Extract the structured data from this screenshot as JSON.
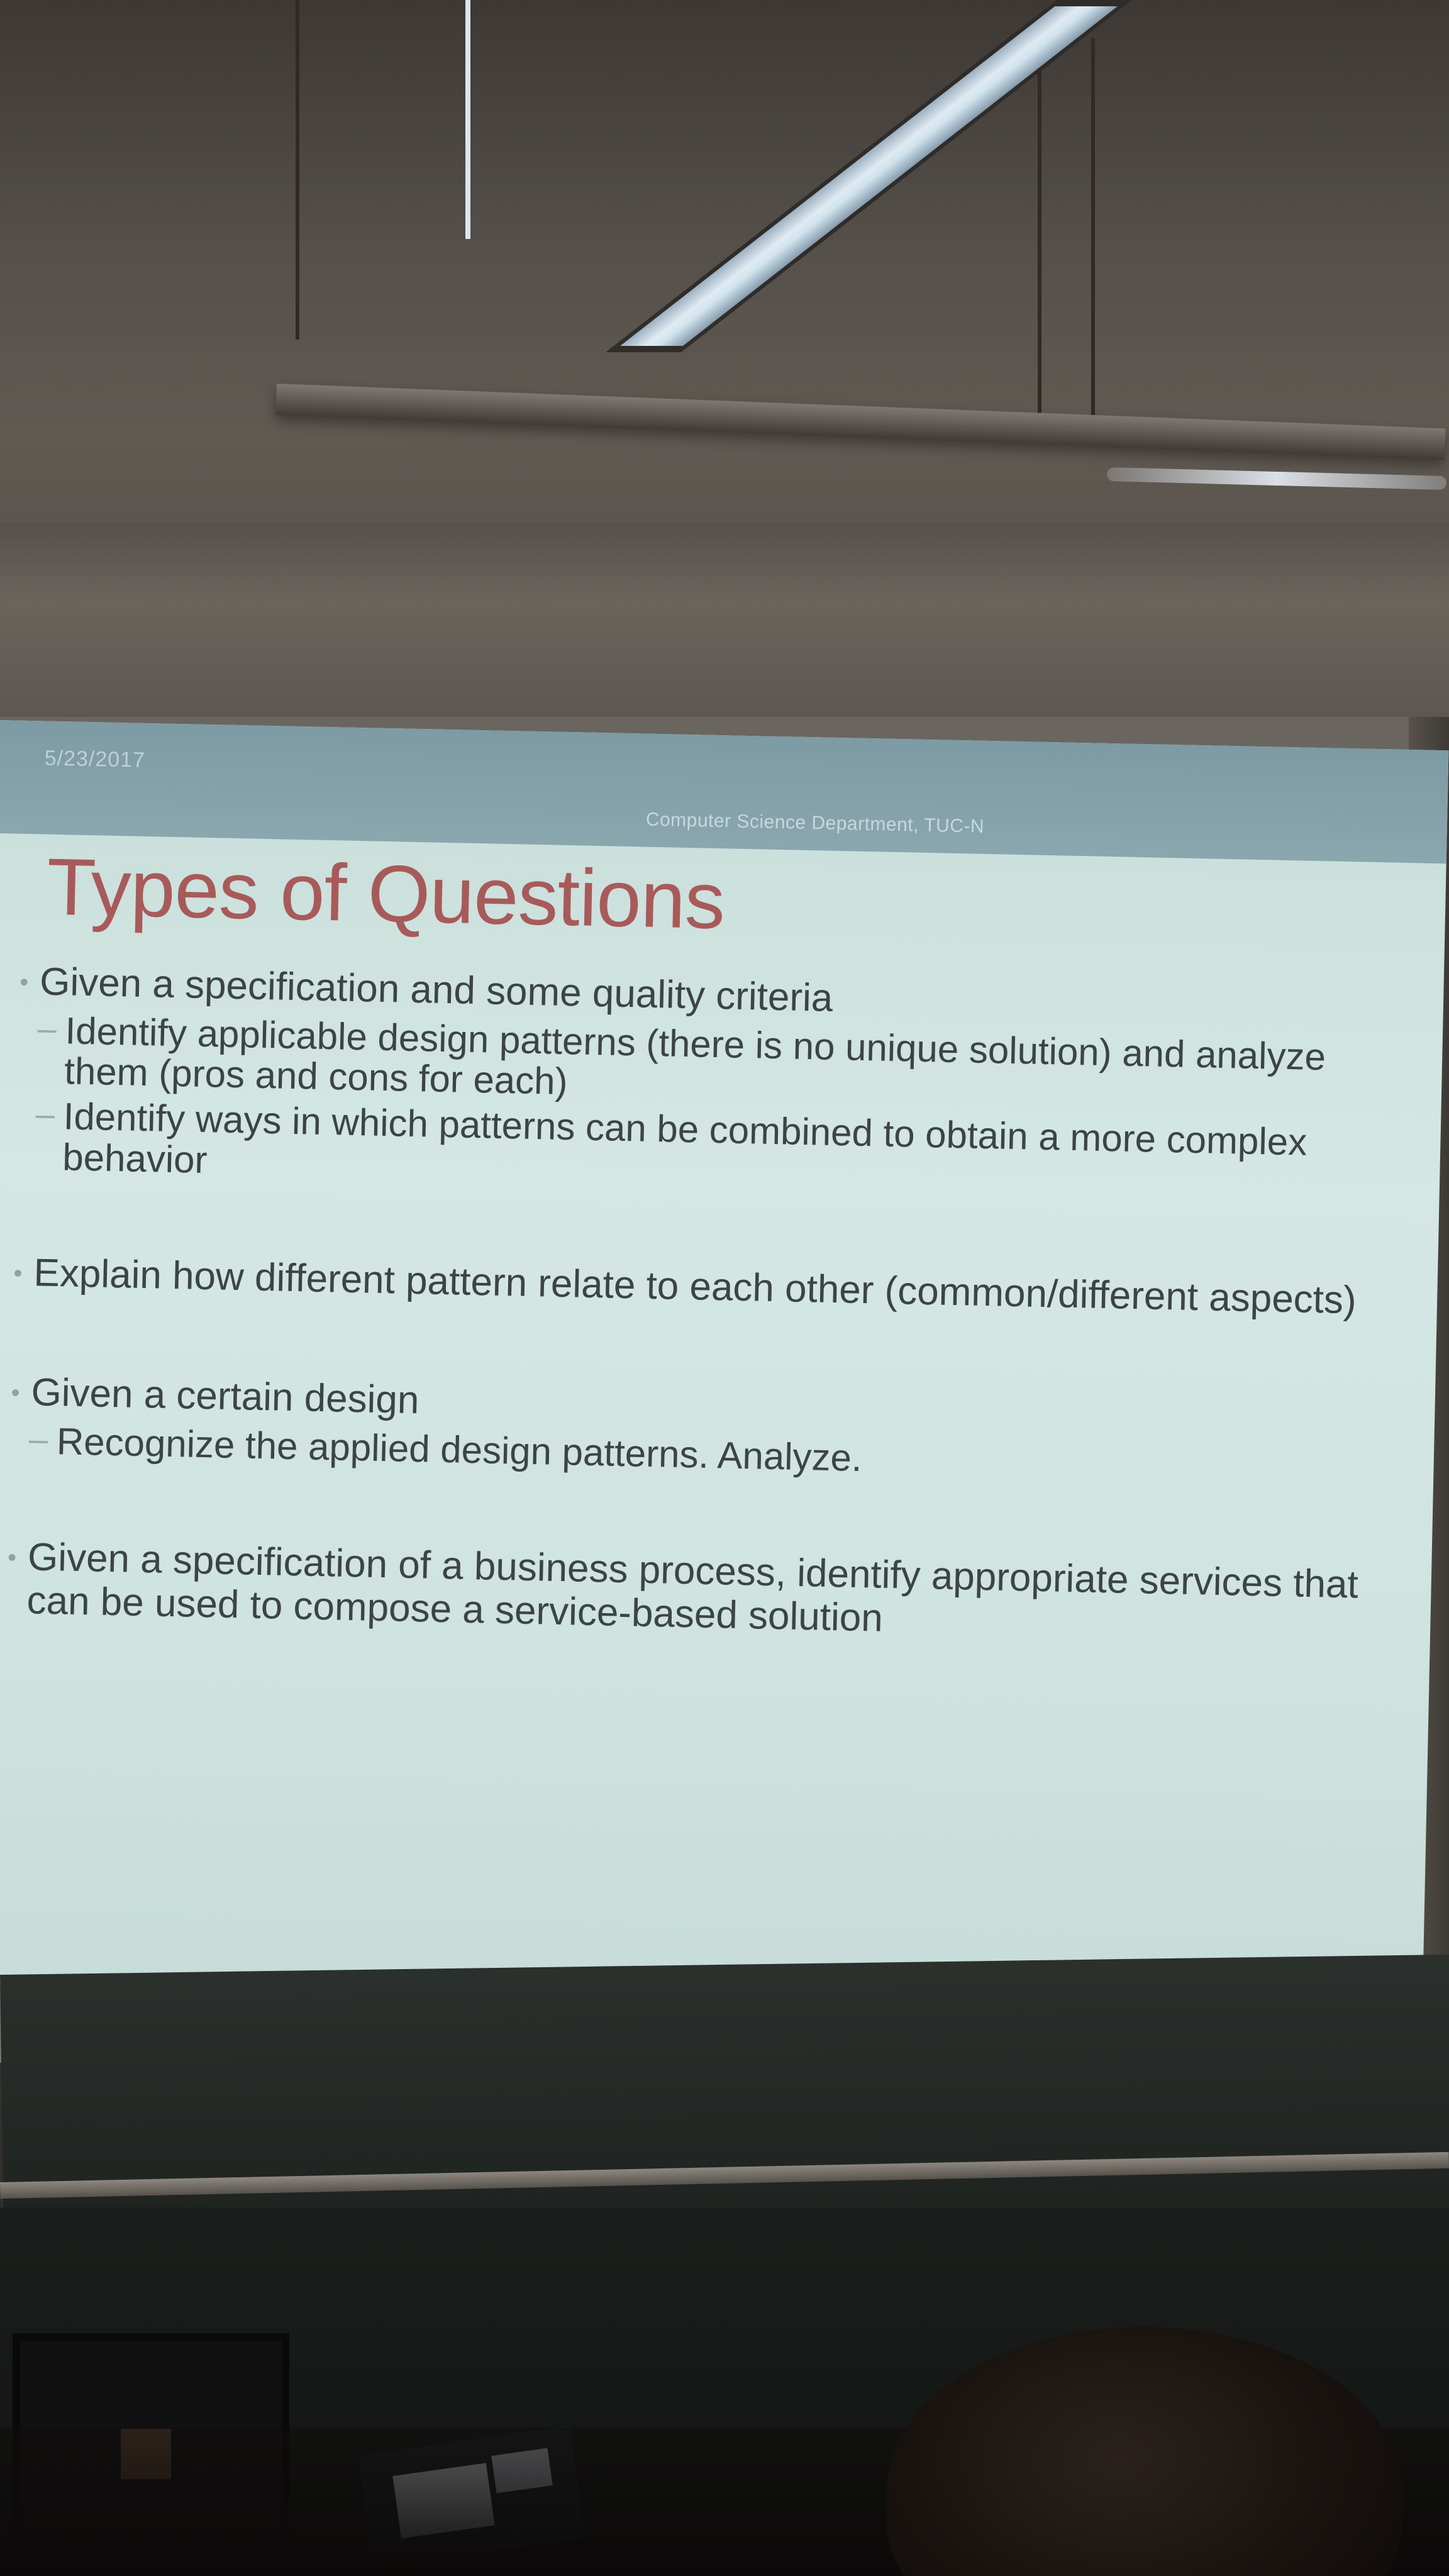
{
  "slide": {
    "date": "5/23/2017",
    "department": "Computer Science Department, TUC-N",
    "title": "Types of Questions",
    "bullets": [
      {
        "text": "Given a specification and some quality criteria",
        "sub": [
          "Identify applicable design patterns (there is no unique solution) and analyze them (pros and cons for each)",
          "Identify ways in which patterns can be combined to obtain a more complex behavior"
        ]
      },
      {
        "text": "Explain how different pattern relate to each other (common/different aspects)",
        "sub": []
      },
      {
        "text": "Given a certain design",
        "sub": [
          "Recognize the applied design patterns. Analyze."
        ]
      },
      {
        "text": "Given a specification of a business process, identify appropriate services that can be used to compose a service-based solution",
        "sub": []
      }
    ]
  }
}
